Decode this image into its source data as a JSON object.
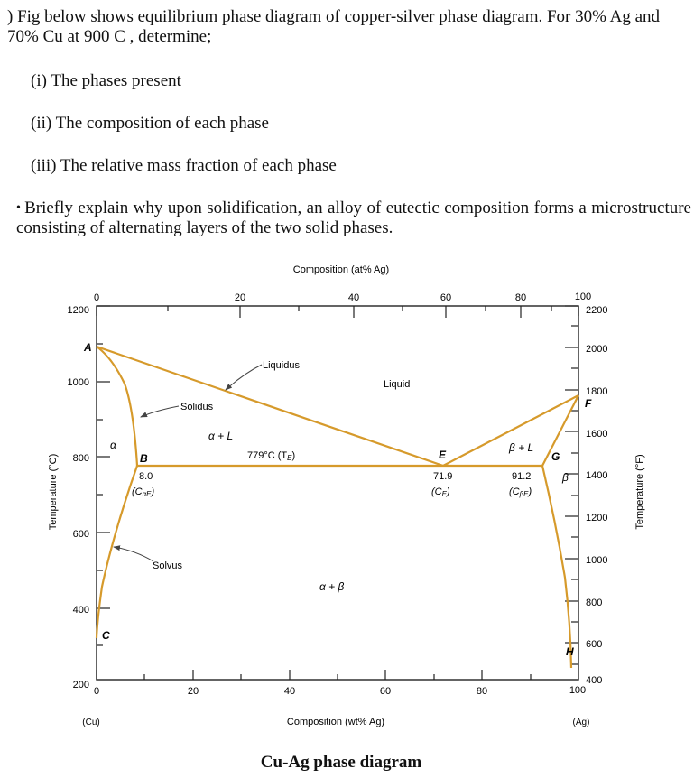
{
  "question1": {
    "prompt": ") Fig below shows equilibrium phase diagram of copper-silver phase diagram.  For 30% Ag and 70% Cu at 900 C , determine;",
    "parts": [
      "(i) The phases present",
      "(ii) The composition of each phase",
      "(iii) The relative mass fraction of each phase"
    ]
  },
  "question2": "Briefly explain why upon solidification, an alloy of eutectic composition forms a microstructure consisting of alternating layers of the two solid phases.",
  "figure": {
    "caption": "Cu-Ag phase diagram",
    "top_axis": {
      "label": "Composition (at% Ag)",
      "ticks": [
        "0",
        "20",
        "40",
        "60",
        "80",
        "100"
      ]
    },
    "bottom_axis": {
      "label": "Composition (wt% Ag)",
      "ticks": [
        "0",
        "20",
        "40",
        "60",
        "80",
        "100"
      ],
      "left_end": "(Cu)",
      "right_end": "(Ag)"
    },
    "left_axis": {
      "label": "Temperature (°C)",
      "ticks": [
        "1200",
        "1000",
        "800",
        "600",
        "400",
        "200"
      ]
    },
    "right_axis": {
      "label": "Temperature (°F)",
      "ticks": [
        "2200",
        "2000",
        "1800",
        "1600",
        "1400",
        "1200",
        "1000",
        "800",
        "600",
        "400"
      ]
    },
    "point_labels": {
      "A": "A",
      "B": "B",
      "C": "C",
      "E": "E",
      "F": "F",
      "G": "G",
      "H": "H"
    },
    "region_labels": {
      "alpha": "α",
      "alpha_liquid": "α + L",
      "beta_liquid": "β + L",
      "beta": "β",
      "alpha_beta": "α + β",
      "liquid": "Liquid"
    },
    "curve_labels": {
      "liquidus": "Liquidus",
      "solidus": "Solidus",
      "solvus": "Solvus",
      "eutectic_temp": "779°C (T",
      "eutectic_temp_sub": "E",
      "eutectic_temp_close": ")"
    },
    "composition_labels": {
      "alpha_value": "8.0",
      "alpha_symbol": "(C",
      "alpha_sub": "αE",
      "alpha_close": ")",
      "eutectic_value": "71.9",
      "eutectic_symbol": "(C",
      "eutectic_sub": "E",
      "eutectic_close": ")",
      "beta_value": "91.2",
      "beta_symbol": "(C",
      "beta_sub": "βE",
      "beta_close": ")"
    },
    "colors": {
      "phase_lines": "#d69a2b",
      "frame": "#222222",
      "arrow": "#444444"
    }
  }
}
